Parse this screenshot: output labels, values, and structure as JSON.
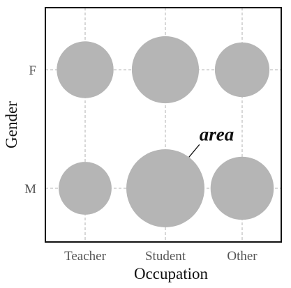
{
  "chart_data": {
    "type": "scatter",
    "mark": "circle-area",
    "xlabel": "Occupation",
    "ylabel": "Gender",
    "x_categories": [
      "Teacher",
      "Student",
      "Other"
    ],
    "y_categories": [
      "M",
      "F"
    ],
    "grid": true,
    "colors": {
      "mark": "#b5b5b5",
      "grid": "#c4c4c4",
      "frame": "#111111"
    },
    "points": [
      {
        "x": "Teacher",
        "y": "F",
        "size": 3.8
      },
      {
        "x": "Student",
        "y": "F",
        "size": 5.3
      },
      {
        "x": "Other",
        "y": "F",
        "size": 3.5
      },
      {
        "x": "Teacher",
        "y": "M",
        "size": 3.3
      },
      {
        "x": "Student",
        "y": "M",
        "size": 7.2
      },
      {
        "x": "Other",
        "y": "M",
        "size": 4.7
      }
    ],
    "annotation": {
      "text": "area",
      "target": {
        "x": "Student",
        "y": "M"
      }
    }
  }
}
